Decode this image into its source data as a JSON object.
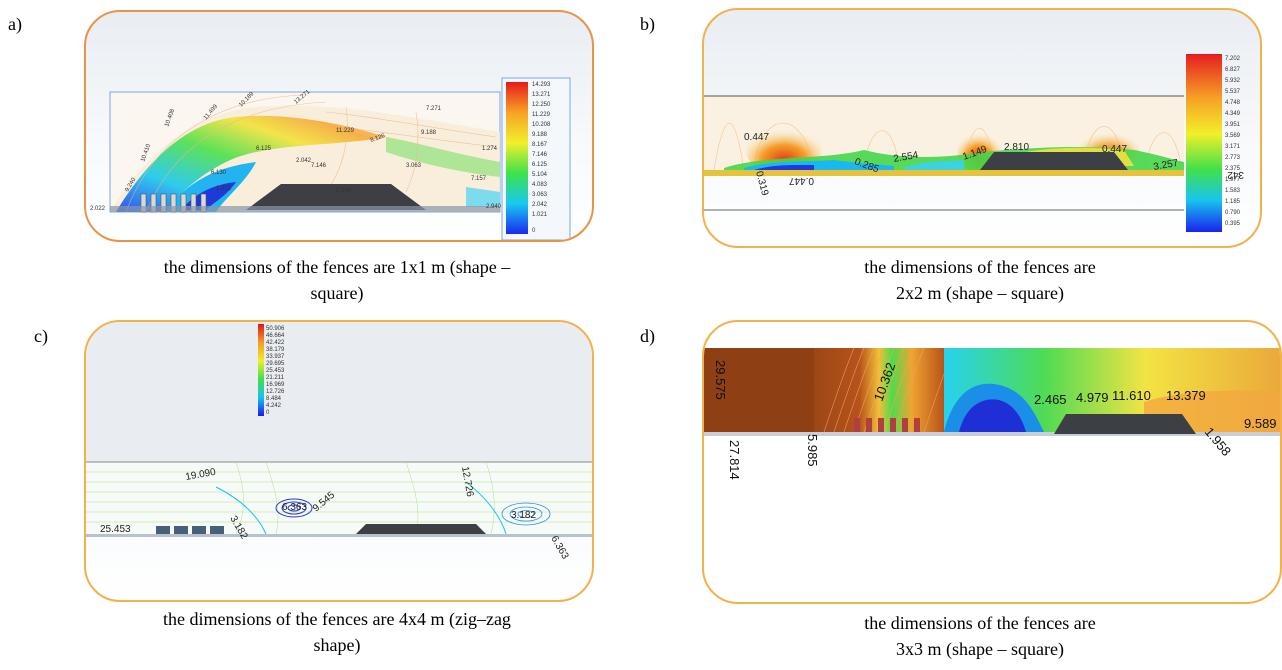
{
  "panels": [
    {
      "letter": "a)",
      "caption_line1": "the dimensions of the fences are 1x1 m (shape –",
      "caption_line2": "square)",
      "labels": [
        "9.240",
        "10.410",
        "10.408",
        "11.499",
        "10.189",
        "13.271",
        "7.271",
        "5.104",
        "8.126",
        "9.188",
        "11.229",
        "6.125",
        "7.146",
        "6.130",
        "7.157",
        "1.274",
        "2.022",
        "2.940",
        "1.021",
        "2.042",
        "3.063"
      ],
      "legend_ticks": [
        "14.293",
        "13.271",
        "12.250",
        "11.229",
        "10.208",
        "9.188",
        "8.167",
        "7.146",
        "6.125",
        "5.104",
        "4.083",
        "3.063",
        "2.042",
        "1.021",
        "0"
      ]
    },
    {
      "letter": "b)",
      "caption_line1": "the dimensions of the fences are",
      "caption_line2": "2x2 m (shape – square)",
      "labels": [
        "0.319",
        "0.447",
        "0.447",
        "0.285",
        "2.554",
        "1.149",
        "2.810",
        "0.447",
        "3.257",
        "342"
      ],
      "legend_ticks": [
        "7.202",
        "6.827",
        "5.932",
        "5.537",
        "4.748",
        "4.349",
        "3.951",
        "3.569",
        "3.171",
        "2.773",
        "2.375",
        "1.977",
        "1.583",
        "1.185",
        "0.790",
        "0.395"
      ]
    },
    {
      "letter": "c)",
      "caption_line1": "the dimensions of the fences are 4x4 m (zig–zag",
      "caption_line2": "shape)",
      "labels": [
        "19.090",
        "6.363",
        "9.545",
        "12.726",
        "3.182",
        "25.453",
        "3.182",
        "6.363"
      ],
      "legend_ticks": [
        "50.906",
        "46.664",
        "42.422",
        "38.179",
        "33.937",
        "29.695",
        "25.453",
        "21.211",
        "16.969",
        "12.726",
        "8.484",
        "4.242",
        "0"
      ]
    },
    {
      "letter": "d)",
      "caption_line1": "the dimensions of the fences are",
      "caption_line2": "3x3 m (shape – square)",
      "labels": [
        "29.575",
        "27.814",
        "5.985",
        "10.362",
        "2.465",
        "4.979",
        "11.610",
        "13.379",
        "1.958",
        "9.589"
      ]
    }
  ]
}
